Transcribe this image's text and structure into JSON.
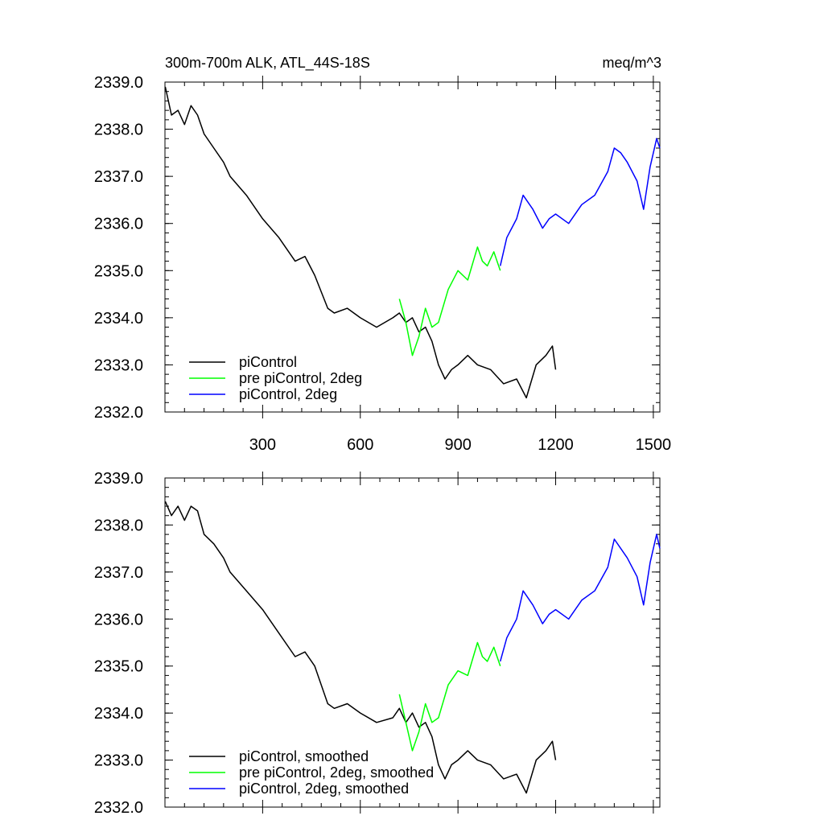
{
  "title_left": "300m-700m ALK, ATL_44S-18S",
  "title_right": "meq/m^3",
  "chart_data": [
    {
      "type": "line",
      "xlim": [
        0,
        1520
      ],
      "ylim": [
        2332.0,
        2339.0
      ],
      "yticks": [
        "2332.0",
        "2333.0",
        "2334.0",
        "2335.0",
        "2336.0",
        "2337.0",
        "2338.0",
        "2339.0"
      ],
      "xticks": [
        "300",
        "600",
        "900",
        "1200",
        "1500"
      ],
      "show_xtick_labels": true,
      "grid": false,
      "legend_position": "bottom-left",
      "series": [
        {
          "name": "piControl",
          "color": "#000000",
          "x": [
            1,
            20,
            40,
            60,
            80,
            100,
            120,
            150,
            180,
            200,
            250,
            300,
            350,
            400,
            430,
            460,
            500,
            520,
            560,
            600,
            650,
            700,
            720,
            740,
            760,
            780,
            800,
            820,
            840,
            860,
            880,
            900,
            930,
            960,
            1000,
            1040,
            1080,
            1110,
            1140,
            1170,
            1190,
            1200
          ],
          "y": [
            2338.9,
            2338.3,
            2338.4,
            2338.1,
            2338.5,
            2338.3,
            2337.9,
            2337.6,
            2337.3,
            2337.0,
            2336.6,
            2336.1,
            2335.7,
            2335.2,
            2335.3,
            2334.9,
            2334.2,
            2334.1,
            2334.2,
            2334.0,
            2333.8,
            2334.0,
            2334.1,
            2333.9,
            2334.0,
            2333.7,
            2333.8,
            2333.5,
            2333.0,
            2332.7,
            2332.9,
            2333.0,
            2333.2,
            2333.0,
            2332.9,
            2332.6,
            2332.7,
            2332.3,
            2333.0,
            2333.2,
            2333.4,
            2332.9
          ]
        },
        {
          "name": "pre piControl, 2deg",
          "color": "#00ff00",
          "x": [
            720,
            740,
            760,
            780,
            800,
            820,
            840,
            870,
            900,
            930,
            960,
            975,
            990,
            1010,
            1020,
            1030
          ],
          "y": [
            2334.4,
            2333.9,
            2333.2,
            2333.6,
            2334.2,
            2333.8,
            2333.9,
            2334.6,
            2335.0,
            2334.8,
            2335.5,
            2335.2,
            2335.1,
            2335.4,
            2335.2,
            2335.0
          ]
        },
        {
          "name": "piControl, 2deg",
          "color": "#0000ff",
          "x": [
            1030,
            1050,
            1080,
            1100,
            1130,
            1160,
            1180,
            1200,
            1240,
            1280,
            1320,
            1360,
            1380,
            1400,
            1420,
            1450,
            1470,
            1490,
            1510,
            1520
          ],
          "y": [
            2335.1,
            2335.7,
            2336.1,
            2336.6,
            2336.3,
            2335.9,
            2336.1,
            2336.2,
            2336.0,
            2336.4,
            2336.6,
            2337.1,
            2337.6,
            2337.5,
            2337.3,
            2336.9,
            2336.3,
            2337.2,
            2337.8,
            2337.6
          ]
        }
      ]
    },
    {
      "type": "line",
      "xlim": [
        0,
        1520
      ],
      "ylim": [
        2332.0,
        2339.0
      ],
      "yticks": [
        "2332.0",
        "2333.0",
        "2334.0",
        "2335.0",
        "2336.0",
        "2337.0",
        "2338.0",
        "2339.0"
      ],
      "xticks": [
        "300",
        "600",
        "900",
        "1200",
        "1500"
      ],
      "show_xtick_labels": false,
      "grid": false,
      "legend_position": "bottom-left",
      "series": [
        {
          "name": "piControl, smoothed",
          "color": "#000000",
          "x": [
            1,
            20,
            40,
            60,
            80,
            100,
            120,
            150,
            180,
            200,
            250,
            300,
            350,
            400,
            430,
            460,
            500,
            520,
            560,
            600,
            650,
            700,
            720,
            740,
            760,
            780,
            800,
            820,
            840,
            860,
            880,
            900,
            930,
            960,
            1000,
            1040,
            1080,
            1110,
            1140,
            1170,
            1190,
            1200
          ],
          "y": [
            2338.5,
            2338.2,
            2338.4,
            2338.1,
            2338.4,
            2338.3,
            2337.8,
            2337.6,
            2337.3,
            2337.0,
            2336.6,
            2336.2,
            2335.7,
            2335.2,
            2335.3,
            2335.0,
            2334.2,
            2334.1,
            2334.2,
            2334.0,
            2333.8,
            2333.9,
            2334.1,
            2333.8,
            2334.0,
            2333.7,
            2333.8,
            2333.5,
            2332.9,
            2332.6,
            2332.9,
            2333.0,
            2333.2,
            2333.0,
            2332.9,
            2332.6,
            2332.7,
            2332.3,
            2333.0,
            2333.2,
            2333.4,
            2333.0
          ]
        },
        {
          "name": "pre piControl, 2deg, smoothed",
          "color": "#00ff00",
          "x": [
            720,
            740,
            760,
            780,
            800,
            820,
            840,
            870,
            900,
            930,
            960,
            975,
            990,
            1010,
            1020,
            1030
          ],
          "y": [
            2334.4,
            2333.8,
            2333.2,
            2333.6,
            2334.2,
            2333.8,
            2333.9,
            2334.6,
            2334.9,
            2334.8,
            2335.5,
            2335.2,
            2335.1,
            2335.4,
            2335.2,
            2335.0
          ]
        },
        {
          "name": "piControl, 2deg, smoothed",
          "color": "#0000ff",
          "x": [
            1030,
            1050,
            1080,
            1100,
            1130,
            1160,
            1180,
            1200,
            1240,
            1280,
            1320,
            1360,
            1380,
            1400,
            1420,
            1450,
            1470,
            1490,
            1510,
            1520
          ],
          "y": [
            2335.1,
            2335.6,
            2336.0,
            2336.6,
            2336.3,
            2335.9,
            2336.1,
            2336.2,
            2336.0,
            2336.4,
            2336.6,
            2337.1,
            2337.7,
            2337.5,
            2337.3,
            2336.9,
            2336.3,
            2337.2,
            2337.8,
            2337.5
          ]
        }
      ]
    }
  ]
}
